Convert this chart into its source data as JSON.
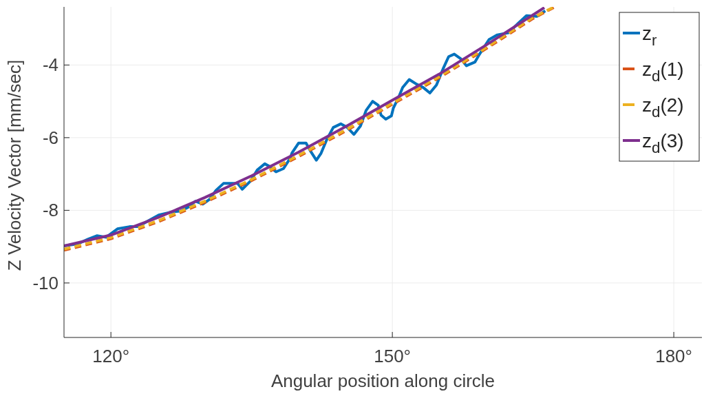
{
  "chart_data": {
    "type": "line",
    "xlabel": "Angular position along circle",
    "ylabel": "Z Velocity Vector [mm/sec]",
    "xlim": [
      115,
      183
    ],
    "ylim": [
      -11.5,
      -2.4
    ],
    "xticks": [
      {
        "value": 120,
        "label": "120°"
      },
      {
        "value": 150,
        "label": "150°"
      },
      {
        "value": 180,
        "label": "180°"
      }
    ],
    "yticks": [
      -10,
      -8,
      -6,
      -4
    ],
    "grid": true,
    "legend": "top right",
    "series": [
      {
        "name": "z$_{r}$",
        "color": "#0072bd",
        "line_style": "solid",
        "x": [
          115,
          116.5,
          117.6,
          118.5,
          119.5,
          120.7,
          122.0,
          122.9,
          123.9,
          125.1,
          126.6,
          127.4,
          128.2,
          129.0,
          129.8,
          130.5,
          131.2,
          132.0,
          133.5,
          134.0,
          134.9,
          135.6,
          136.4,
          136.9,
          137.6,
          138.4,
          139.1,
          139.3,
          140.0,
          140.8,
          141.3,
          141.9,
          142.4,
          143.0,
          143.7,
          144.5,
          145.2,
          145.9,
          146.6,
          147.2,
          147.9,
          148.5,
          148.8,
          149.3,
          149.9,
          150.1,
          150.7,
          151.1,
          151.8,
          152.6,
          153.3,
          154.0,
          154.7,
          155.4,
          156.0,
          156.6,
          157.3,
          157.9,
          158.8,
          159.2,
          160.3,
          161.2,
          162.4,
          163.5,
          164.3,
          165.4,
          166.3
        ],
        "values": [
          -8.98,
          -8.92,
          -8.79,
          -8.7,
          -8.74,
          -8.51,
          -8.45,
          -8.45,
          -8.3,
          -8.13,
          -8.04,
          -8.02,
          -7.92,
          -7.75,
          -7.83,
          -7.7,
          -7.45,
          -7.26,
          -7.26,
          -7.42,
          -7.19,
          -6.89,
          -6.72,
          -6.79,
          -6.94,
          -6.85,
          -6.57,
          -6.42,
          -6.15,
          -6.15,
          -6.38,
          -6.62,
          -6.43,
          -6.06,
          -5.72,
          -5.62,
          -5.72,
          -5.91,
          -5.68,
          -5.25,
          -5.0,
          -5.11,
          -5.38,
          -5.49,
          -5.4,
          -5.19,
          -4.87,
          -4.62,
          -4.4,
          -4.53,
          -4.62,
          -4.77,
          -4.55,
          -4.11,
          -3.77,
          -3.7,
          -3.83,
          -4.02,
          -3.92,
          -3.74,
          -3.3,
          -3.17,
          -3.11,
          -2.83,
          -2.64,
          -2.66,
          -2.51
        ]
      },
      {
        "name": "z$_{d}$(1)",
        "color": "#d95319",
        "line_style": "dashed",
        "x": [
          115,
          120,
          125,
          130,
          135,
          140,
          145,
          150,
          155,
          160,
          165,
          167.2
        ],
        "values": [
          -9.1,
          -8.78,
          -8.32,
          -7.78,
          -7.18,
          -6.52,
          -5.82,
          -5.08,
          -4.35,
          -3.55,
          -2.72,
          -2.42
        ]
      },
      {
        "name": "z$_{d}$(2)",
        "color": "#edb120",
        "line_style": "dashed",
        "x": [
          115,
          120,
          125,
          130,
          135,
          140,
          145,
          150,
          155,
          160,
          165,
          167.1
        ],
        "values": [
          -9.07,
          -8.75,
          -8.29,
          -7.75,
          -7.15,
          -6.49,
          -5.79,
          -5.05,
          -4.32,
          -3.52,
          -2.69,
          -2.42
        ]
      },
      {
        "name": "z$_{d}$(3)",
        "color": "#7e2f8e",
        "line_style": "solid",
        "x": [
          115,
          120,
          125,
          130,
          135,
          140,
          145,
          150,
          155,
          160,
          166.2
        ],
        "values": [
          -8.98,
          -8.68,
          -8.2,
          -7.65,
          -7.05,
          -6.4,
          -5.7,
          -4.97,
          -4.25,
          -3.45,
          -2.42
        ]
      }
    ]
  }
}
